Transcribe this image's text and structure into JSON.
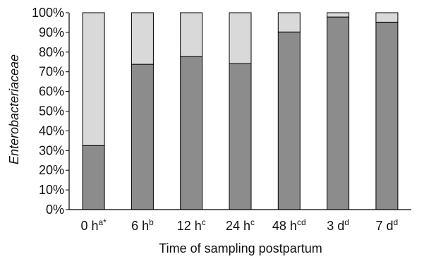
{
  "chart_data": {
    "type": "bar",
    "stacked": true,
    "categories": [
      {
        "base": "0 h",
        "sup": "a*"
      },
      {
        "base": "6 h",
        "sup": "b"
      },
      {
        "base": "12 h",
        "sup": "c"
      },
      {
        "base": "24 h",
        "sup": "c"
      },
      {
        "base": "48 h",
        "sup": "cd"
      },
      {
        "base": "3 d",
        "sup": "d"
      },
      {
        "base": "7 d",
        "sup": "d"
      }
    ],
    "series": [
      {
        "values": [
          32.5,
          73.8,
          77.7,
          74.2,
          90.2,
          97.8,
          95.2
        ],
        "color": "#8c8c8c"
      },
      {
        "values": [
          67.5,
          26.2,
          22.3,
          25.8,
          9.8,
          2.2,
          4.8
        ],
        "color": "#d9d9d9"
      }
    ],
    "yticks": [
      "0%",
      "10%",
      "20%",
      "30%",
      "40%",
      "50%",
      "60%",
      "70%",
      "80%",
      "90%",
      "100%"
    ],
    "ylim": [
      0,
      100
    ],
    "xlabel": "Time of sampling postpartum",
    "ylabel": "Enterobacteriaceae",
    "grid": false,
    "legend": "none"
  }
}
